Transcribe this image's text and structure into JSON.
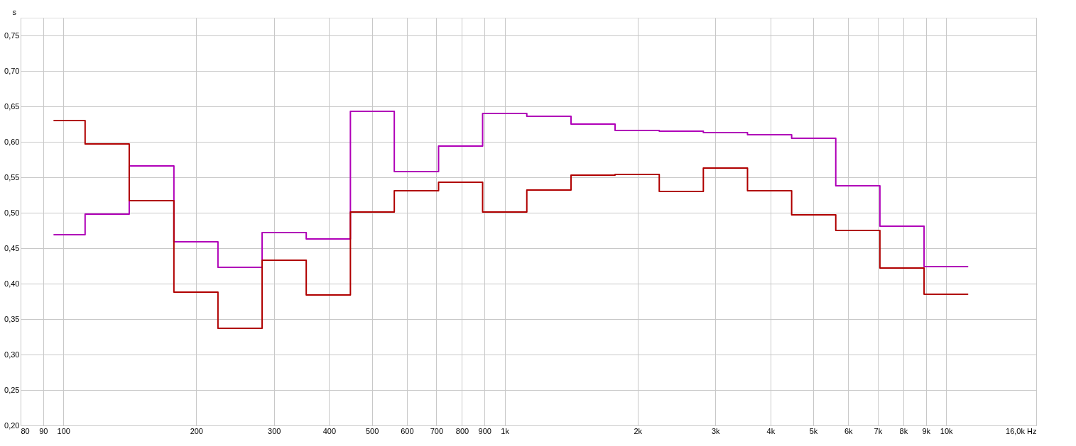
{
  "chart_data": {
    "type": "step",
    "ylabel": "s",
    "x": [
      95,
      112,
      141,
      178,
      224,
      282,
      355,
      447,
      562,
      708,
      891,
      1122,
      1413,
      1778,
      2239,
      2818,
      3548,
      4467,
      5623,
      7079,
      8913,
      11220
    ],
    "series": [
      {
        "color": "#b000b8",
        "values": [
          0.469,
          0.498,
          0.566,
          0.459,
          0.423,
          0.472,
          0.463,
          0.643,
          0.558,
          0.594,
          0.64,
          0.636,
          0.625,
          0.616,
          0.615,
          0.613,
          0.61,
          0.605,
          0.538,
          0.481,
          0.424,
          0.424
        ]
      },
      {
        "color": "#b00000",
        "values": [
          0.63,
          0.597,
          0.517,
          0.388,
          0.337,
          0.433,
          0.384,
          0.501,
          0.531,
          0.543,
          0.501,
          0.532,
          0.553,
          0.554,
          0.53,
          0.563,
          0.531,
          0.497,
          0.475,
          0.422,
          0.385,
          0.385
        ]
      }
    ],
    "log": "x",
    "xlim": [
      80,
      16000
    ],
    "xticks": [
      {
        "value": 80,
        "label": "80"
      },
      {
        "value": 90,
        "label": "90"
      },
      {
        "value": 100,
        "label": "100"
      },
      {
        "value": 200,
        "label": "200"
      },
      {
        "value": 300,
        "label": "300"
      },
      {
        "value": 400,
        "label": "400"
      },
      {
        "value": 500,
        "label": "500"
      },
      {
        "value": 600,
        "label": "600"
      },
      {
        "value": 700,
        "label": "700"
      },
      {
        "value": 800,
        "label": "800"
      },
      {
        "value": 900,
        "label": "900"
      },
      {
        "value": 1000,
        "label": "1k"
      },
      {
        "value": 2000,
        "label": "2k"
      },
      {
        "value": 3000,
        "label": "3k"
      },
      {
        "value": 4000,
        "label": "4k"
      },
      {
        "value": 5000,
        "label": "5k"
      },
      {
        "value": 6000,
        "label": "6k"
      },
      {
        "value": 7000,
        "label": "7k"
      },
      {
        "value": 8000,
        "label": "8k"
      },
      {
        "value": 9000,
        "label": "9k"
      },
      {
        "value": 10000,
        "label": "10k"
      },
      {
        "value": 16000,
        "label": "16,0k Hz"
      }
    ],
    "ylim": [
      0.2,
      0.775
    ],
    "yticks": [
      {
        "value": 0.2,
        "label": "0,20"
      },
      {
        "value": 0.25,
        "label": "0,25"
      },
      {
        "value": 0.3,
        "label": "0,30"
      },
      {
        "value": 0.35,
        "label": "0,35"
      },
      {
        "value": 0.4,
        "label": "0,40"
      },
      {
        "value": 0.45,
        "label": "0,45"
      },
      {
        "value": 0.5,
        "label": "0,50"
      },
      {
        "value": 0.55,
        "label": "0,55"
      },
      {
        "value": 0.6,
        "label": "0,60"
      },
      {
        "value": 0.65,
        "label": "0,65"
      },
      {
        "value": 0.7,
        "label": "0,70"
      },
      {
        "value": 0.75,
        "label": "0,75"
      }
    ],
    "grid": true,
    "line_style": "solid"
  }
}
